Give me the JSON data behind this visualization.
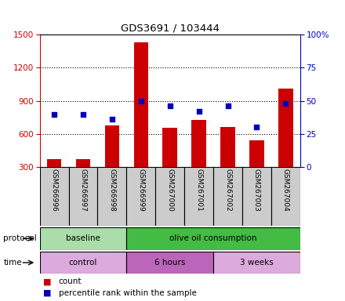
{
  "title": "GDS3691 / 103444",
  "samples": [
    "GSM266996",
    "GSM266997",
    "GSM266998",
    "GSM266999",
    "GSM267000",
    "GSM267001",
    "GSM267002",
    "GSM267003",
    "GSM267004"
  ],
  "counts": [
    370,
    375,
    680,
    1430,
    655,
    730,
    665,
    545,
    1010
  ],
  "percentile_ranks": [
    40,
    40,
    36,
    50,
    46,
    42,
    46,
    30,
    48
  ],
  "left_ylim": [
    300,
    1500
  ],
  "left_yticks": [
    300,
    600,
    900,
    1200,
    1500
  ],
  "right_ylim": [
    0,
    100
  ],
  "right_yticks": [
    0,
    25,
    50,
    75,
    100
  ],
  "right_yticklabels": [
    "0",
    "25",
    "50",
    "75",
    "100%"
  ],
  "bar_color": "#cc0000",
  "dot_color": "#0000bb",
  "protocol_groups": [
    {
      "label": "baseline",
      "start": 0,
      "end": 3,
      "color": "#aaddaa"
    },
    {
      "label": "olive oil consumption",
      "start": 3,
      "end": 9,
      "color": "#44bb44"
    }
  ],
  "time_groups": [
    {
      "label": "control",
      "start": 0,
      "end": 3,
      "color": "#ddaadd"
    },
    {
      "label": "6 hours",
      "start": 3,
      "end": 6,
      "color": "#bb66bb"
    },
    {
      "label": "3 weeks",
      "start": 6,
      "end": 9,
      "color": "#ddaadd"
    }
  ],
  "legend_count_label": "count",
  "legend_percentile_label": "percentile rank within the sample",
  "protocol_label": "protocol",
  "time_label": "time",
  "background_color": "#ffffff",
  "xtick_bg_color": "#cccccc"
}
